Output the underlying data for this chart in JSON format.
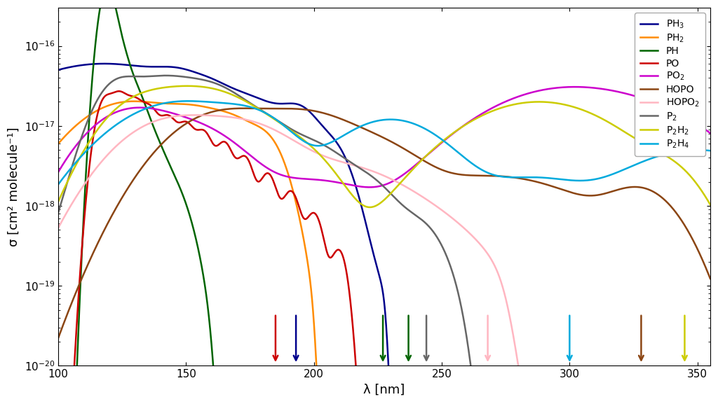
{
  "xlabel": "λ [nm]",
  "ylabel": "σ [cm² molecule⁻¹]",
  "xlim": [
    100,
    355
  ],
  "ylim": [
    1e-20,
    3e-16
  ],
  "species": [
    {
      "name": "PH$_3$",
      "color": "#00008B",
      "lw": 1.8
    },
    {
      "name": "PH$_2$",
      "color": "#FF8C00",
      "lw": 1.8
    },
    {
      "name": "PH",
      "color": "#006400",
      "lw": 1.8
    },
    {
      "name": "PO",
      "color": "#CC0000",
      "lw": 1.8
    },
    {
      "name": "PO$_2$",
      "color": "#CC00CC",
      "lw": 1.8
    },
    {
      "name": "HOPO",
      "color": "#8B4513",
      "lw": 1.8
    },
    {
      "name": "HOPO$_2$",
      "color": "#FFB6C1",
      "lw": 1.8
    },
    {
      "name": "P$_2$",
      "color": "#666666",
      "lw": 1.8
    },
    {
      "name": "P$_2$H$_2$",
      "color": "#CCCC00",
      "lw": 1.8
    },
    {
      "name": "P$_2$H$_4$",
      "color": "#00AADD",
      "lw": 1.8
    }
  ],
  "arrows": [
    {
      "x": 185,
      "color": "#CC0000"
    },
    {
      "x": 193,
      "color": "#00008B"
    },
    {
      "x": 227,
      "color": "#006400"
    },
    {
      "x": 237,
      "color": "#006400"
    },
    {
      "x": 244,
      "color": "#666666"
    },
    {
      "x": 268,
      "color": "#FFB6C1"
    },
    {
      "x": 300,
      "color": "#00AADD"
    },
    {
      "x": 328,
      "color": "#8B4513"
    },
    {
      "x": 345,
      "color": "#CCCC00"
    }
  ]
}
